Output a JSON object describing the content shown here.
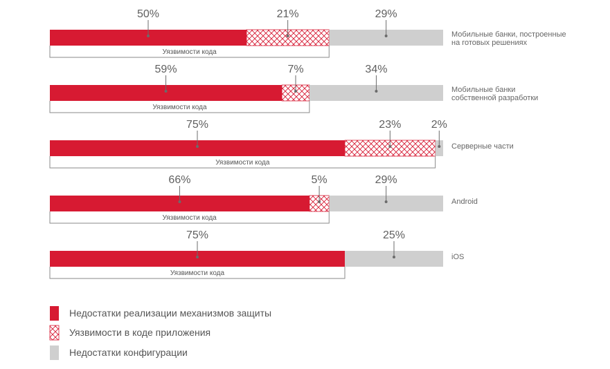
{
  "chart_data": {
    "type": "bar",
    "orientation": "horizontal",
    "stacked": true,
    "normalized": true,
    "xlim": [
      0,
      100
    ],
    "legend_position": "bottom-left",
    "categories": [
      [
        "Мобильные банки, построенные",
        "на готовых решениях"
      ],
      [
        "Мобильные банки",
        "собственной разработки"
      ],
      [
        "Серверные части"
      ],
      [
        "Android"
      ],
      [
        "iOS"
      ]
    ],
    "series": [
      {
        "name": "Недостатки реализации механизмов защиты",
        "values": [
          50,
          59,
          75,
          66,
          75
        ],
        "labels": [
          "50%",
          "59%",
          "75%",
          "66%",
          "75%"
        ],
        "color": "#d71a32",
        "pattern": "solid"
      },
      {
        "name": "Уязвимости в коде приложения",
        "values": [
          21,
          7,
          23,
          5,
          0
        ],
        "labels": [
          "21%",
          "7%",
          "23%",
          "5%",
          ""
        ],
        "color": "#d71a32",
        "pattern": "crosshatch"
      },
      {
        "name": "Недостатки конфигурации",
        "values": [
          29,
          34,
          2,
          29,
          25
        ],
        "labels": [
          "29%",
          "34%",
          "2%",
          "29%",
          "25%"
        ],
        "color": "#cfcfcf",
        "pattern": "solid"
      }
    ],
    "bracket_label": "Уязвимости кода",
    "bracket_extent": [
      71,
      66,
      98,
      71,
      75
    ]
  }
}
